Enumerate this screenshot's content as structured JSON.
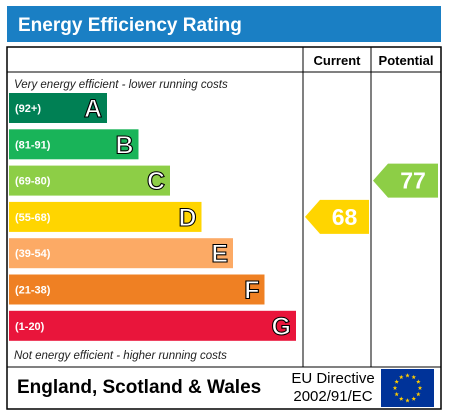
{
  "title": "Energy Efficiency Rating",
  "columns": {
    "current": "Current",
    "potential": "Potential"
  },
  "notes": {
    "top": "Very energy efficient - lower running costs",
    "bottom": "Not energy efficient - higher running costs"
  },
  "footer": {
    "region": "England, Scotland & Wales",
    "directive_line1": "EU Directive",
    "directive_line2": "2002/91/EC"
  },
  "colors": {
    "title_bar": "#1a7fc4",
    "eu_flag": "#003399",
    "eu_stars": "#ffcc00"
  },
  "chart_data": {
    "type": "bar",
    "categories": [
      "A",
      "B",
      "C",
      "D",
      "E",
      "F",
      "G"
    ],
    "bands": [
      {
        "letter": "A",
        "range": "(92+)",
        "min": 92,
        "max": 100,
        "color": "#008054"
      },
      {
        "letter": "B",
        "range": "(81-91)",
        "min": 81,
        "max": 91,
        "color": "#19b459"
      },
      {
        "letter": "C",
        "range": "(69-80)",
        "min": 69,
        "max": 80,
        "color": "#8dce46"
      },
      {
        "letter": "D",
        "range": "(55-68)",
        "min": 55,
        "max": 68,
        "color": "#ffd500"
      },
      {
        "letter": "E",
        "range": "(39-54)",
        "min": 39,
        "max": 54,
        "color": "#fcaa65"
      },
      {
        "letter": "F",
        "range": "(21-38)",
        "min": 21,
        "max": 38,
        "color": "#ef8023"
      },
      {
        "letter": "G",
        "range": "(1-20)",
        "min": 1,
        "max": 20,
        "color": "#e9153b"
      }
    ],
    "current": {
      "value": 68,
      "band": "D",
      "color": "#ffd500"
    },
    "potential": {
      "value": 77,
      "band": "C",
      "color": "#8dce46"
    }
  }
}
